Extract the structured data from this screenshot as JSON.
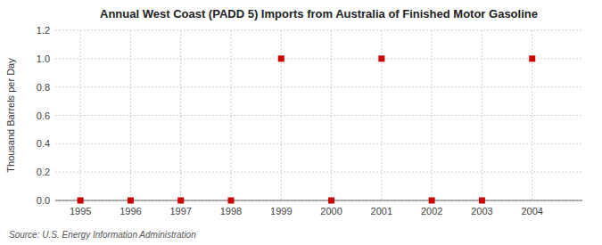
{
  "chart_data": {
    "type": "scatter",
    "title": "Annual West Coast (PADD 5) Imports from Australia of Finished Motor Gasoline",
    "y_label": "Thousand Barrels per Day",
    "annotations": [
      "Source: U.S. Energy Information Administration"
    ],
    "x": [
      1995,
      1996,
      1997,
      1998,
      1999,
      2000,
      2001,
      2002,
      2003,
      2004
    ],
    "values": [
      0.0,
      0.0,
      0.0,
      0.0,
      1.0,
      0.0,
      1.0,
      0.0,
      0.0,
      1.0
    ],
    "color": "#CC0000",
    "marker": "square",
    "xlim": [
      1994.5,
      2005.0
    ],
    "ylim": [
      0.0,
      1.2
    ],
    "xticks": [
      1995,
      1996,
      1997,
      1998,
      1999,
      2000,
      2001,
      2002,
      2003,
      2004
    ],
    "yticks": [
      {
        "value": 0.0,
        "label": "0.0"
      },
      0.2,
      0.4,
      0.6,
      0.8,
      {
        "value": 1.0,
        "label": "1.0"
      },
      1.2
    ],
    "grid": true
  }
}
